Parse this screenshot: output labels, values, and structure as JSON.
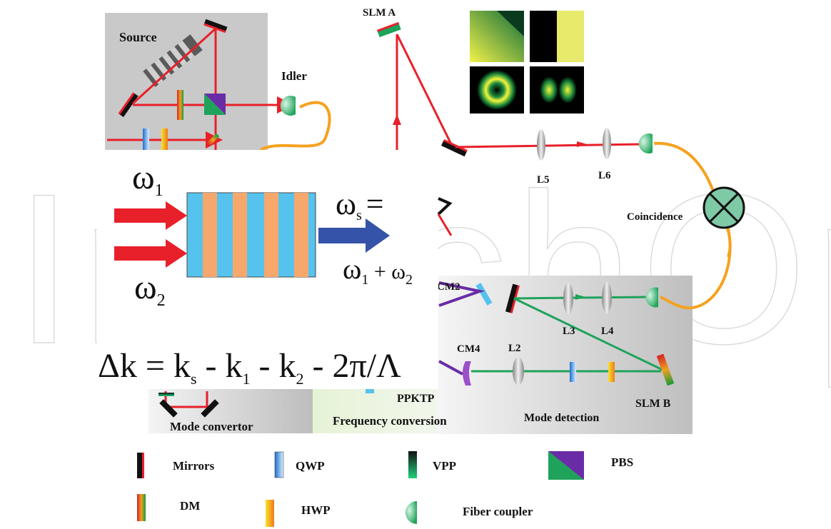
{
  "labels": {
    "source": "Source",
    "idler": "Idler",
    "slm_a": "SLM A",
    "l5": "L5",
    "l6": "L6",
    "coincidence": "Coincidence",
    "cm2": "CM2",
    "cm4": "CM4",
    "l2": "L2",
    "l3": "L3",
    "l4": "L4",
    "slm_b": "SLM B",
    "ppktp": "PPKTP",
    "frequency_conversion": "Frequency conversion",
    "mode_convertor": "Mode convertor",
    "mode_detection": "Mode detection"
  },
  "inset": {
    "omega1": "ω",
    "omega1_sub": "1",
    "omega2": "ω",
    "omega2_sub": "2",
    "omega_s": "ω",
    "omega_s_sub": "s",
    "equals": "=",
    "sum": "ω",
    "sum_sub1": "1",
    "sum_plus": " + ω",
    "sum_sub2": "2",
    "equation": "Δk = k",
    "eq_s": "s",
    "eq_mid1": " - k",
    "eq_1": "1",
    "eq_mid2": " - k",
    "eq_2": "2",
    "eq_end": " - 2π/Λ"
  },
  "legend": {
    "mirrors": "Mirrors",
    "qwp": "QWP",
    "vpp": "VPP",
    "pbs": "PBS",
    "dm": "DM",
    "hwp": "HWP",
    "fiber_coupler": "Fiber coupler"
  },
  "watermark": "IntechOpen",
  "colors": {
    "red_beam": "#e8202a",
    "green_beam": "#1fa35a",
    "purple_beam": "#6a2ca6",
    "fiber": "#f5a21f",
    "crystal_blue": "#56c3ef",
    "crystal_orange": "#f6a76b",
    "blue_arrow": "#3553a8"
  }
}
